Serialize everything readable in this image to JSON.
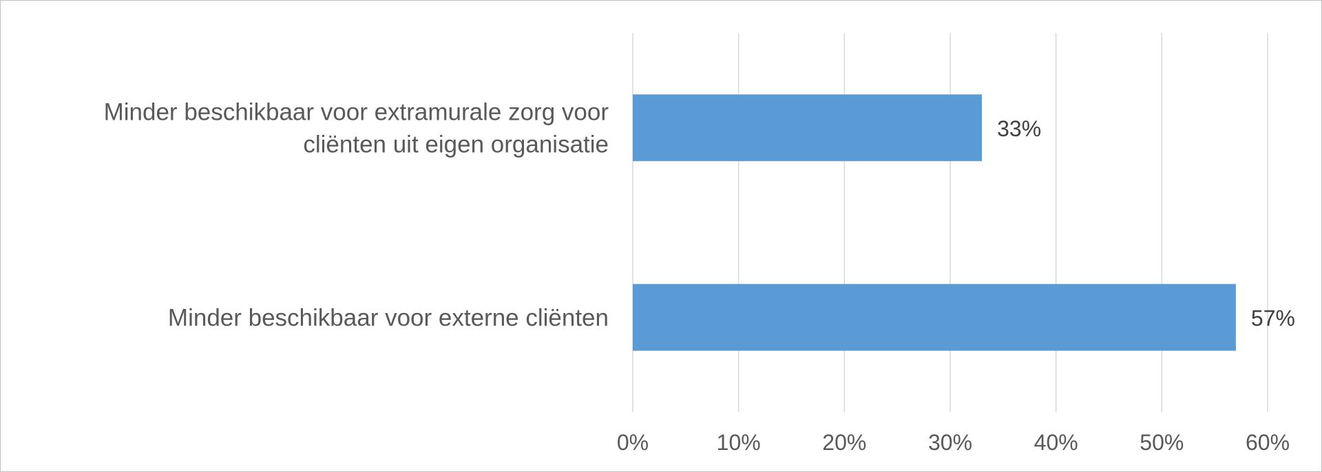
{
  "chart_data": {
    "type": "bar",
    "orientation": "horizontal",
    "categories": [
      "Minder beschikbaar voor extramurale zorg voor cliënten uit eigen organisatie",
      "Minder beschikbaar voor externe cliënten"
    ],
    "category_label_lines": [
      [
        "Minder beschikbaar voor extramurale zorg voor",
        "cliënten uit eigen organisatie"
      ],
      [
        "Minder beschikbaar voor externe cliënten"
      ]
    ],
    "values": [
      33,
      57
    ],
    "data_labels": [
      "33%",
      "57%"
    ],
    "xlim": [
      0,
      60
    ],
    "x_ticks": [
      0,
      10,
      20,
      30,
      40,
      50,
      60
    ],
    "x_tick_labels": [
      "0%",
      "10%",
      "20%",
      "30%",
      "40%",
      "50%",
      "60%"
    ],
    "grid": "vertical",
    "legend": "none",
    "bar_color": "#5b9bd5",
    "grid_color": "#d9d9d9"
  }
}
